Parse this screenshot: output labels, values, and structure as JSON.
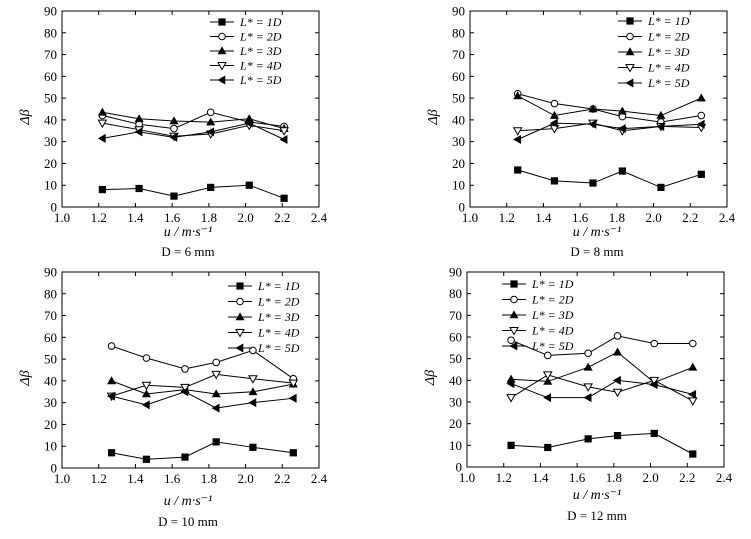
{
  "chart_data": [
    {
      "type": "line",
      "title": "",
      "caption": "D = 6 mm",
      "xlabel": "u / m·s⁻¹",
      "ylabel": "Δβ",
      "xlim": [
        1.0,
        2.4
      ],
      "ylim": [
        0,
        90
      ],
      "xticks": [
        "1.0",
        "1.2",
        "1.4",
        "1.6",
        "1.8",
        "2.0",
        "2.2",
        "2.4"
      ],
      "yticks": [
        "0",
        "10",
        "20",
        "30",
        "40",
        "50",
        "60",
        "70",
        "80",
        "90"
      ],
      "legend_position": "top-right",
      "series": [
        {
          "name": "L* = 1D",
          "marker": "square",
          "x": [
            1.22,
            1.42,
            1.61,
            1.81,
            2.02,
            2.21
          ],
          "values": [
            8,
            8.5,
            5,
            9,
            10,
            4
          ]
        },
        {
          "name": "L* = 2D",
          "marker": "circle-open",
          "x": [
            1.22,
            1.42,
            1.61,
            1.81,
            2.02,
            2.21
          ],
          "values": [
            42,
            38,
            36,
            43.5,
            39,
            37
          ]
        },
        {
          "name": "L* = 3D",
          "marker": "triangle-up",
          "x": [
            1.22,
            1.42,
            1.61,
            1.81,
            2.02,
            2.21
          ],
          "values": [
            43.5,
            40.5,
            39.5,
            39,
            40.5,
            36
          ]
        },
        {
          "name": "L* = 4D",
          "marker": "triangle-down-open",
          "x": [
            1.22,
            1.42,
            1.61,
            1.81,
            2.02,
            2.21
          ],
          "values": [
            38.5,
            35.5,
            32.5,
            33.5,
            37.5,
            35
          ]
        },
        {
          "name": "L* = 5D",
          "marker": "triangle-left",
          "x": [
            1.22,
            1.42,
            1.61,
            1.81,
            2.02,
            2.21
          ],
          "values": [
            31.5,
            34.5,
            32,
            34.5,
            38.5,
            31
          ]
        }
      ]
    },
    {
      "type": "line",
      "title": "",
      "caption": "D = 8 mm",
      "xlabel": "u / m·s⁻¹",
      "ylabel": "Δβ",
      "xlim": [
        1.0,
        2.4
      ],
      "ylim": [
        0,
        90
      ],
      "xticks": [
        "1.0",
        "1.2",
        "1.4",
        "1.6",
        "1.8",
        "2.0",
        "2.2",
        "2.4"
      ],
      "yticks": [
        "0",
        "10",
        "20",
        "30",
        "40",
        "50",
        "60",
        "70",
        "80",
        "90"
      ],
      "legend_position": "top-right",
      "series": [
        {
          "name": "L* = 1D",
          "marker": "square",
          "x": [
            1.26,
            1.46,
            1.67,
            1.83,
            2.04,
            2.26
          ],
          "values": [
            17,
            12,
            11,
            16.5,
            9,
            15
          ]
        },
        {
          "name": "L* = 2D",
          "marker": "circle-open",
          "x": [
            1.26,
            1.46,
            1.67,
            1.83,
            2.04,
            2.26
          ],
          "values": [
            52,
            47.5,
            45,
            41.5,
            39,
            42
          ]
        },
        {
          "name": "L* = 3D",
          "marker": "triangle-up",
          "x": [
            1.26,
            1.46,
            1.67,
            1.83,
            2.04,
            2.26
          ],
          "values": [
            51,
            42,
            45,
            44,
            42,
            50
          ]
        },
        {
          "name": "L* = 4D",
          "marker": "triangle-down-open",
          "x": [
            1.26,
            1.46,
            1.67,
            1.83,
            2.04,
            2.26
          ],
          "values": [
            35,
            36,
            38.5,
            35,
            37,
            36.5
          ]
        },
        {
          "name": "L* = 5D",
          "marker": "triangle-left",
          "x": [
            1.26,
            1.46,
            1.67,
            1.83,
            2.04,
            2.26
          ],
          "values": [
            31,
            38.5,
            38,
            36,
            37,
            38
          ]
        }
      ]
    },
    {
      "type": "line",
      "title": "",
      "caption": "D = 10 mm",
      "xlabel": "u / m·s⁻¹",
      "ylabel": "Δβ",
      "xlim": [
        1.0,
        2.4
      ],
      "ylim": [
        0,
        90
      ],
      "xticks": [
        "1.0",
        "1.2",
        "1.4",
        "1.6",
        "1.8",
        "2.0",
        "2.2",
        "2.4"
      ],
      "yticks": [
        "0",
        "10",
        "20",
        "30",
        "40",
        "50",
        "60",
        "70",
        "80",
        "90"
      ],
      "legend_position": "top-right",
      "series": [
        {
          "name": "L* = 1D",
          "marker": "square",
          "x": [
            1.27,
            1.46,
            1.67,
            1.84,
            2.04,
            2.26
          ],
          "values": [
            7,
            4,
            5,
            12,
            9.5,
            7
          ]
        },
        {
          "name": "L* = 2D",
          "marker": "circle-open",
          "x": [
            1.27,
            1.46,
            1.67,
            1.84,
            2.04,
            2.26
          ],
          "values": [
            56,
            50.5,
            45.5,
            48.5,
            54,
            41
          ]
        },
        {
          "name": "L* = 3D",
          "marker": "triangle-up",
          "x": [
            1.27,
            1.46,
            1.67,
            1.84,
            2.04,
            2.26
          ],
          "values": [
            40,
            34,
            36,
            34,
            35,
            38.5
          ]
        },
        {
          "name": "L* = 4D",
          "marker": "triangle-down-open",
          "x": [
            1.27,
            1.46,
            1.67,
            1.84,
            2.04,
            2.26
          ],
          "values": [
            33,
            38,
            37,
            43,
            41,
            39
          ]
        },
        {
          "name": "L* = 5D",
          "marker": "triangle-left",
          "x": [
            1.27,
            1.46,
            1.67,
            1.84,
            2.04,
            2.26
          ],
          "values": [
            33,
            29,
            35,
            27.5,
            30,
            32
          ]
        }
      ]
    },
    {
      "type": "line",
      "title": "",
      "caption": "D = 12 mm",
      "xlabel": "u / m·s⁻¹",
      "ylabel": "Δβ",
      "xlim": [
        1.0,
        2.4
      ],
      "ylim": [
        0,
        90
      ],
      "xticks": [
        "1.0",
        "1.2",
        "1.4",
        "1.6",
        "1.8",
        "2.0",
        "2.2",
        "2.4"
      ],
      "yticks": [
        "0",
        "10",
        "20",
        "30",
        "40",
        "50",
        "60",
        "70",
        "80",
        "90"
      ],
      "legend_position": "top-left",
      "series": [
        {
          "name": "L* = 1D",
          "marker": "square",
          "x": [
            1.24,
            1.44,
            1.66,
            1.82,
            2.02,
            2.23
          ],
          "values": [
            10,
            9,
            13,
            14.5,
            15.5,
            6
          ]
        },
        {
          "name": "L* = 2D",
          "marker": "circle-open",
          "x": [
            1.24,
            1.44,
            1.66,
            1.82,
            2.02,
            2.23
          ],
          "values": [
            58.5,
            51.5,
            52.5,
            60.5,
            57,
            57
          ]
        },
        {
          "name": "L* = 3D",
          "marker": "triangle-up",
          "x": [
            1.24,
            1.44,
            1.66,
            1.82,
            2.02,
            2.23
          ],
          "values": [
            40.5,
            39.5,
            46,
            53,
            39,
            46
          ]
        },
        {
          "name": "L* = 4D",
          "marker": "triangle-down-open",
          "x": [
            1.24,
            1.44,
            1.66,
            1.82,
            2.02,
            2.23
          ],
          "values": [
            32,
            42.5,
            37,
            34.5,
            40,
            30.5
          ]
        },
        {
          "name": "L* = 5D",
          "marker": "triangle-left",
          "x": [
            1.24,
            1.44,
            1.66,
            1.82,
            2.02,
            2.23
          ],
          "values": [
            38.5,
            32,
            32,
            40,
            38,
            33.5
          ]
        }
      ]
    }
  ]
}
